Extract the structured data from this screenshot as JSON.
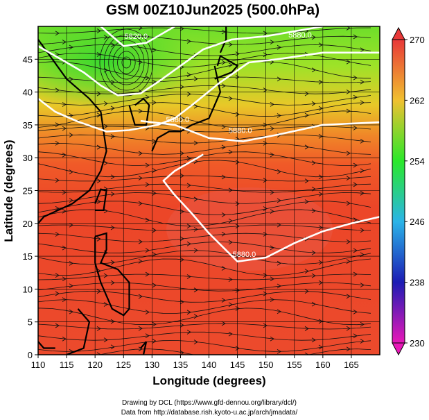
{
  "chart_data": {
    "type": "heatmap",
    "title": "GSM 00Z10Jun2025 (500.0hPa)",
    "xlabel": "Longitude (degrees)",
    "ylabel": "Latitude  (degrees)",
    "xlim": [
      110,
      170
    ],
    "ylim": [
      0,
      50
    ],
    "xticks": [
      "110",
      "115",
      "120",
      "125",
      "130",
      "135",
      "140",
      "145",
      "150",
      "155",
      "160",
      "165"
    ],
    "yticks": [
      "0",
      "5",
      "10",
      "15",
      "20",
      "25",
      "30",
      "35",
      "40",
      "45"
    ],
    "colorbar": {
      "range": [
        230,
        270
      ],
      "ticks": [
        "230",
        "238",
        "246",
        "254",
        "262",
        "270"
      ],
      "colors": [
        "#e818b8",
        "#1c1cb4",
        "#2ab4e8",
        "#2ae82a",
        "#f0c030",
        "#e83838"
      ]
    },
    "contour_labels": [
      "5880.0",
      "5820.0",
      "5880.0",
      "5880.0",
      "5880.0"
    ],
    "credits": [
      "Drawing by DCL (https://www.gfd-dennou.org/library/dcl/)",
      "Data from http://database.rish.kyoto-u.ac.jp/arch/jmadata/"
    ]
  }
}
